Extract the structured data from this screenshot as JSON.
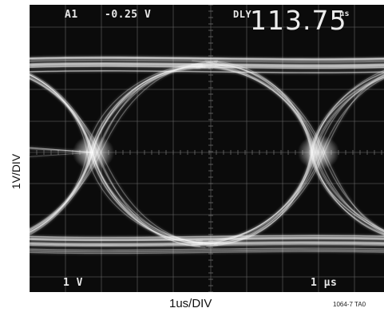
{
  "screen": {
    "channel": "A1",
    "offset": "-0.25 V",
    "mode": "DLY",
    "time_value": "113.75",
    "time_unit": "µs",
    "volts_per_div": "1 V",
    "time_per_div": "1 µs"
  },
  "labels": {
    "y_axis": "1V/DIV",
    "x_axis": "1us/DIV",
    "figure_code": "1064-7 TA0"
  },
  "colors": {
    "screen_background": "#0b0b0b",
    "graticule": "#6d6d6d",
    "trace": "#ffffff",
    "osd_text": "#e7e7e7"
  }
}
